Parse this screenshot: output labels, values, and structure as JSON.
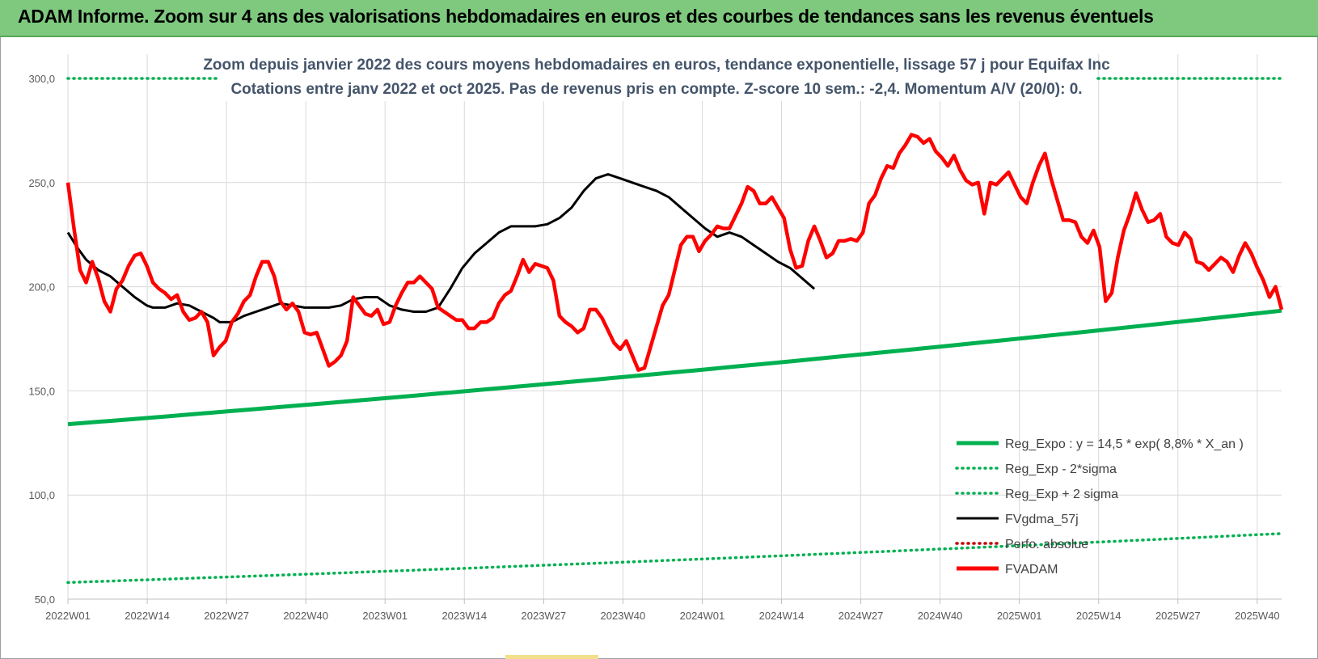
{
  "banner": {
    "title": "ADAM Informe. Zoom sur 4 ans des valorisations hebdomadaires en euros et des courbes de tendances sans les revenus éventuels"
  },
  "colors": {
    "banner_bg": "#7ec97e",
    "reg_expo": "#00b050",
    "fvgdma": "#000000",
    "fvadam": "#ff0000",
    "perfo": "#c00000",
    "gridline": "#d9d9d9",
    "subtitle": "#44546a"
  },
  "chart_data": {
    "type": "line",
    "title_lines": [
      "Zoom depuis janvier 2022 des cours moyens hebdomadaires en euros, tendance exponentielle, lissage 57 j pour Equifax Inc",
      "Cotations entre janv 2022 et oct 2025. Pas de revenus pris en compte. Z-score 10 sem.: -2,4.  Momentum A/V (20/0): 0."
    ],
    "x_tick_labels": [
      "2022W01",
      "2022W14",
      "2022W27",
      "2022W40",
      "2023W01",
      "2023W14",
      "2023W27",
      "2023W40",
      "2024W01",
      "2024W14",
      "2024W27",
      "2024W40",
      "2025W01",
      "2025W14",
      "2025W27",
      "2025W40"
    ],
    "x_range_weeks": [
      0,
      199
    ],
    "x_tick_step_weeks": 13,
    "ylim": [
      50,
      300
    ],
    "y_ticks": [
      "50,0",
      "100,0",
      "150,0",
      "200,0",
      "250,0",
      "300,0"
    ],
    "grid": true,
    "legend_position": "bottom-right",
    "legend": [
      {
        "key": "reg_expo",
        "label": "Reg_Expo : y = 14,5 * exp( 8,8% * X_an )",
        "style": "solid-thick",
        "color": "#00b050"
      },
      {
        "key": "reg_minus",
        "label": "Reg_Exp - 2*sigma",
        "style": "dotted",
        "color": "#00b050"
      },
      {
        "key": "reg_plus",
        "label": "Reg_Exp + 2 sigma",
        "style": "dotted",
        "color": "#00b050"
      },
      {
        "key": "fvgdma",
        "label": "FVgdma_57j",
        "style": "solid",
        "color": "#000000"
      },
      {
        "key": "perfo",
        "label": "Perfo. absolue",
        "style": "dotted",
        "color": "#c00000"
      },
      {
        "key": "fvadam",
        "label": "FVADAM",
        "style": "solid-thick",
        "color": "#ff0000"
      }
    ],
    "series": [
      {
        "name": "Reg_Expo : y = 14,5 * exp( 8,8% * X_an )",
        "key": "reg_expo",
        "start": {
          "x": 0,
          "y": 134
        },
        "end": {
          "x": 199,
          "y": 188.5
        }
      },
      {
        "name": "Reg_Exp - 2*sigma",
        "key": "reg_minus",
        "start": {
          "x": 0,
          "y": 58
        },
        "end": {
          "x": 199,
          "y": 81.5
        }
      },
      {
        "name": "Reg_Exp + 2 sigma",
        "key": "reg_plus",
        "start": {
          "x": 0,
          "y": 300
        },
        "end": {
          "x": 199,
          "y": 300
        }
      },
      {
        "name": "FVgdma_57j",
        "key": "fvgdma",
        "points": [
          [
            0,
            226
          ],
          [
            3,
            219
          ],
          [
            6,
            213
          ],
          [
            10,
            208
          ],
          [
            14,
            205
          ],
          [
            18,
            200
          ],
          [
            22,
            195
          ],
          [
            26,
            191
          ],
          [
            28,
            190
          ],
          [
            32,
            190
          ],
          [
            36,
            192
          ],
          [
            40,
            191
          ],
          [
            44,
            188
          ],
          [
            48,
            185
          ],
          [
            50,
            183
          ],
          [
            54,
            183
          ],
          [
            58,
            186
          ],
          [
            62,
            188
          ],
          [
            66,
            190
          ],
          [
            70,
            192
          ],
          [
            74,
            191
          ],
          [
            78,
            190
          ],
          [
            82,
            190
          ],
          [
            86,
            190
          ],
          [
            90,
            191
          ],
          [
            94,
            194
          ],
          [
            98,
            195
          ],
          [
            102,
            195
          ],
          [
            106,
            191
          ],
          [
            110,
            189
          ],
          [
            114,
            188
          ],
          [
            118,
            188
          ],
          [
            122,
            190
          ],
          [
            126,
            199
          ],
          [
            130,
            209
          ],
          [
            134,
            216
          ],
          [
            138,
            221
          ],
          [
            142,
            226
          ],
          [
            146,
            229
          ],
          [
            150,
            229
          ],
          [
            154,
            229
          ],
          [
            158,
            230
          ],
          [
            162,
            233
          ],
          [
            166,
            238
          ],
          [
            170,
            246
          ],
          [
            174,
            252
          ],
          [
            178,
            254
          ],
          [
            182,
            252
          ],
          [
            186,
            250
          ],
          [
            190,
            248
          ],
          [
            194,
            246
          ],
          [
            198,
            243
          ],
          [
            202,
            238
          ],
          [
            206,
            233
          ],
          [
            210,
            228
          ],
          [
            214,
            224
          ],
          [
            218,
            226
          ],
          [
            222,
            224
          ],
          [
            226,
            220
          ],
          [
            230,
            216
          ],
          [
            234,
            212
          ],
          [
            238,
            209
          ],
          [
            242,
            204
          ],
          [
            246,
            199
          ]
        ]
      },
      {
        "name": "FVADAM",
        "key": "fvadam",
        "points": [
          [
            0,
            250
          ],
          [
            2,
            228
          ],
          [
            4,
            208
          ],
          [
            6,
            202
          ],
          [
            8,
            212
          ],
          [
            10,
            204
          ],
          [
            12,
            193
          ],
          [
            14,
            188
          ],
          [
            16,
            199
          ],
          [
            18,
            203
          ],
          [
            20,
            210
          ],
          [
            22,
            215
          ],
          [
            24,
            216
          ],
          [
            26,
            210
          ],
          [
            28,
            202
          ],
          [
            30,
            199
          ],
          [
            32,
            197
          ],
          [
            34,
            194
          ],
          [
            36,
            196
          ],
          [
            38,
            188
          ],
          [
            40,
            184
          ],
          [
            42,
            185
          ],
          [
            44,
            188
          ],
          [
            46,
            183
          ],
          [
            48,
            167
          ],
          [
            50,
            171
          ],
          [
            52,
            174
          ],
          [
            54,
            183
          ],
          [
            56,
            187
          ],
          [
            58,
            193
          ],
          [
            60,
            196
          ],
          [
            62,
            205
          ],
          [
            64,
            212
          ],
          [
            66,
            212
          ],
          [
            68,
            205
          ],
          [
            70,
            193
          ],
          [
            72,
            189
          ],
          [
            74,
            192
          ],
          [
            76,
            188
          ],
          [
            78,
            178
          ],
          [
            80,
            177
          ],
          [
            82,
            178
          ],
          [
            84,
            170
          ],
          [
            86,
            162
          ],
          [
            88,
            164
          ],
          [
            90,
            167
          ],
          [
            92,
            174
          ],
          [
            94,
            195
          ],
          [
            96,
            191
          ],
          [
            98,
            187
          ],
          [
            100,
            186
          ],
          [
            102,
            189
          ],
          [
            104,
            182
          ],
          [
            106,
            183
          ],
          [
            108,
            191
          ],
          [
            110,
            197
          ],
          [
            112,
            202
          ],
          [
            114,
            202
          ],
          [
            116,
            205
          ],
          [
            118,
            202
          ],
          [
            120,
            199
          ],
          [
            122,
            190
          ],
          [
            124,
            188
          ],
          [
            126,
            186
          ],
          [
            128,
            184
          ],
          [
            130,
            184
          ],
          [
            132,
            180
          ],
          [
            134,
            180
          ],
          [
            136,
            183
          ],
          [
            138,
            183
          ],
          [
            140,
            185
          ],
          [
            142,
            192
          ],
          [
            144,
            196
          ],
          [
            146,
            198
          ],
          [
            148,
            205
          ],
          [
            150,
            213
          ],
          [
            152,
            207
          ],
          [
            154,
            211
          ],
          [
            156,
            210
          ],
          [
            158,
            209
          ],
          [
            160,
            203
          ],
          [
            162,
            186
          ],
          [
            164,
            183
          ],
          [
            166,
            181
          ],
          [
            168,
            178
          ],
          [
            170,
            180
          ],
          [
            172,
            189
          ],
          [
            174,
            189
          ],
          [
            176,
            185
          ],
          [
            178,
            179
          ],
          [
            180,
            173
          ],
          [
            182,
            170
          ],
          [
            184,
            174
          ],
          [
            186,
            167
          ],
          [
            188,
            160
          ],
          [
            190,
            161
          ],
          [
            192,
            171
          ],
          [
            194,
            181
          ],
          [
            196,
            191
          ],
          [
            198,
            196
          ],
          [
            200,
            208
          ],
          [
            202,
            220
          ],
          [
            204,
            224
          ],
          [
            206,
            224
          ],
          [
            208,
            217
          ],
          [
            210,
            222
          ],
          [
            212,
            225
          ],
          [
            214,
            229
          ],
          [
            216,
            228
          ],
          [
            218,
            228
          ],
          [
            220,
            234
          ],
          [
            222,
            240
          ],
          [
            224,
            248
          ],
          [
            226,
            246
          ],
          [
            228,
            240
          ],
          [
            230,
            240
          ],
          [
            232,
            243
          ],
          [
            234,
            238
          ],
          [
            236,
            233
          ],
          [
            238,
            218
          ],
          [
            240,
            209
          ],
          [
            242,
            210
          ],
          [
            244,
            222
          ],
          [
            246,
            229
          ],
          [
            248,
            222
          ],
          [
            250,
            214
          ],
          [
            252,
            216
          ],
          [
            254,
            222
          ],
          [
            256,
            222
          ],
          [
            258,
            223
          ],
          [
            260,
            222
          ],
          [
            262,
            226
          ],
          [
            264,
            240
          ],
          [
            266,
            244
          ],
          [
            268,
            252
          ],
          [
            270,
            258
          ],
          [
            272,
            257
          ],
          [
            274,
            264
          ],
          [
            276,
            268
          ],
          [
            278,
            273
          ],
          [
            280,
            272
          ],
          [
            282,
            269
          ],
          [
            284,
            271
          ],
          [
            286,
            265
          ],
          [
            288,
            262
          ],
          [
            290,
            258
          ],
          [
            292,
            263
          ],
          [
            294,
            256
          ],
          [
            296,
            251
          ],
          [
            298,
            249
          ],
          [
            300,
            250
          ],
          [
            302,
            235
          ],
          [
            304,
            250
          ],
          [
            306,
            249
          ],
          [
            308,
            252
          ],
          [
            310,
            255
          ],
          [
            312,
            249
          ],
          [
            314,
            243
          ],
          [
            316,
            240
          ],
          [
            318,
            250
          ],
          [
            320,
            258
          ],
          [
            322,
            264
          ],
          [
            324,
            252
          ],
          [
            326,
            242
          ],
          [
            328,
            232
          ],
          [
            330,
            232
          ],
          [
            332,
            231
          ],
          [
            334,
            224
          ],
          [
            336,
            221
          ],
          [
            338,
            227
          ],
          [
            340,
            219
          ],
          [
            342,
            193
          ],
          [
            344,
            197
          ],
          [
            346,
            214
          ],
          [
            348,
            227
          ],
          [
            350,
            235
          ],
          [
            352,
            245
          ],
          [
            354,
            237
          ],
          [
            356,
            231
          ],
          [
            358,
            232
          ],
          [
            360,
            235
          ],
          [
            362,
            224
          ],
          [
            364,
            221
          ],
          [
            366,
            220
          ],
          [
            368,
            226
          ],
          [
            370,
            223
          ],
          [
            372,
            212
          ],
          [
            374,
            211
          ],
          [
            376,
            208
          ],
          [
            378,
            211
          ],
          [
            380,
            214
          ],
          [
            382,
            212
          ],
          [
            384,
            207
          ],
          [
            386,
            215
          ],
          [
            388,
            221
          ],
          [
            390,
            216
          ],
          [
            392,
            209
          ],
          [
            394,
            203
          ],
          [
            396,
            195
          ],
          [
            398,
            200
          ],
          [
            400,
            189
          ]
        ]
      }
    ]
  }
}
